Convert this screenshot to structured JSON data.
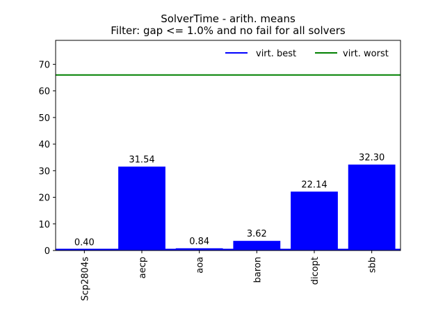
{
  "chart_data": {
    "type": "bar",
    "title": "SolverTime - arith. means",
    "subtitle": "Filter: gap <= 1.0% and no fail for all solvers",
    "categories": [
      "Scp2804s",
      "aecp",
      "aoa",
      "baron",
      "dicopt",
      "sbb"
    ],
    "values": [
      0.4,
      31.54,
      0.84,
      3.62,
      22.14,
      32.3
    ],
    "value_labels": [
      "0.40",
      "31.54",
      "0.84",
      "3.62",
      "22.14",
      "32.30"
    ],
    "bar_color": "#0000ff",
    "ylim": [
      0,
      79
    ],
    "yticks": [
      0,
      10,
      20,
      30,
      40,
      50,
      60,
      70
    ],
    "grid": false,
    "reference_lines": [
      {
        "name": "virt. best",
        "value": 0.4,
        "color": "#0000ff"
      },
      {
        "name": "virt. worst",
        "value": 66.0,
        "color": "#008000"
      }
    ],
    "legend": {
      "placement": "top-right",
      "entries": [
        "virt. best",
        "virt. worst"
      ]
    }
  }
}
